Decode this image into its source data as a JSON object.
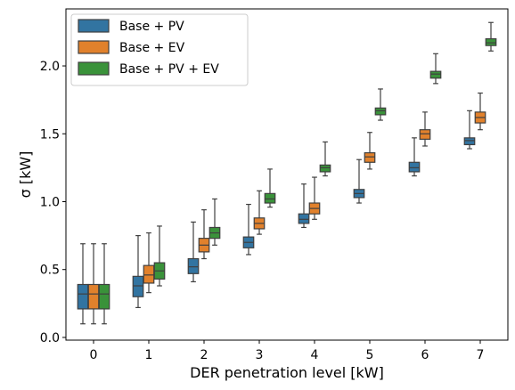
{
  "chart_data": {
    "type": "box",
    "xlabel": "DER penetration level [kW]",
    "ylabel": "σ [kW]",
    "categories": [
      "0",
      "1",
      "2",
      "3",
      "4",
      "5",
      "6",
      "7"
    ],
    "ylim": [
      -0.02,
      2.42
    ],
    "yticks": [
      0.0,
      0.5,
      1.0,
      1.5,
      2.0
    ],
    "ytick_labels": [
      "0.0",
      "0.5",
      "1.0",
      "1.5",
      "2.0"
    ],
    "grid": false,
    "legend_position": "top-left",
    "series": [
      {
        "name": "Base + PV",
        "color": "#3274a1",
        "boxes": [
          {
            "whisker_low": 0.1,
            "q1": 0.21,
            "median": 0.32,
            "q3": 0.39,
            "whisker_high": 0.69
          },
          {
            "whisker_low": 0.22,
            "q1": 0.3,
            "median": 0.38,
            "q3": 0.45,
            "whisker_high": 0.75
          },
          {
            "whisker_low": 0.41,
            "q1": 0.47,
            "median": 0.52,
            "q3": 0.58,
            "whisker_high": 0.85
          },
          {
            "whisker_low": 0.61,
            "q1": 0.66,
            "median": 0.7,
            "q3": 0.74,
            "whisker_high": 0.98
          },
          {
            "whisker_low": 0.81,
            "q1": 0.84,
            "median": 0.87,
            "q3": 0.91,
            "whisker_high": 1.13
          },
          {
            "whisker_low": 0.99,
            "q1": 1.03,
            "median": 1.06,
            "q3": 1.09,
            "whisker_high": 1.31
          },
          {
            "whisker_low": 1.19,
            "q1": 1.22,
            "median": 1.25,
            "q3": 1.29,
            "whisker_high": 1.47
          },
          {
            "whisker_low": 1.39,
            "q1": 1.42,
            "median": 1.45,
            "q3": 1.47,
            "whisker_high": 1.67
          }
        ]
      },
      {
        "name": "Base + EV",
        "color": "#e1812c",
        "boxes": [
          {
            "whisker_low": 0.1,
            "q1": 0.21,
            "median": 0.32,
            "q3": 0.39,
            "whisker_high": 0.69
          },
          {
            "whisker_low": 0.33,
            "q1": 0.4,
            "median": 0.46,
            "q3": 0.53,
            "whisker_high": 0.77
          },
          {
            "whisker_low": 0.58,
            "q1": 0.63,
            "median": 0.68,
            "q3": 0.73,
            "whisker_high": 0.94
          },
          {
            "whisker_low": 0.76,
            "q1": 0.8,
            "median": 0.84,
            "q3": 0.88,
            "whisker_high": 1.08
          },
          {
            "whisker_low": 0.87,
            "q1": 0.91,
            "median": 0.95,
            "q3": 0.99,
            "whisker_high": 1.18
          },
          {
            "whisker_low": 1.24,
            "q1": 1.29,
            "median": 1.33,
            "q3": 1.36,
            "whisker_high": 1.51
          },
          {
            "whisker_low": 1.41,
            "q1": 1.46,
            "median": 1.5,
            "q3": 1.53,
            "whisker_high": 1.66
          },
          {
            "whisker_low": 1.53,
            "q1": 1.58,
            "median": 1.62,
            "q3": 1.66,
            "whisker_high": 1.8
          }
        ]
      },
      {
        "name": "Base + PV + EV",
        "color": "#3a923a",
        "boxes": [
          {
            "whisker_low": 0.1,
            "q1": 0.21,
            "median": 0.32,
            "q3": 0.39,
            "whisker_high": 0.69
          },
          {
            "whisker_low": 0.38,
            "q1": 0.43,
            "median": 0.49,
            "q3": 0.55,
            "whisker_high": 0.82
          },
          {
            "whisker_low": 0.68,
            "q1": 0.73,
            "median": 0.77,
            "q3": 0.81,
            "whisker_high": 1.02
          },
          {
            "whisker_low": 0.96,
            "q1": 0.99,
            "median": 1.02,
            "q3": 1.06,
            "whisker_high": 1.24
          },
          {
            "whisker_low": 1.19,
            "q1": 1.22,
            "median": 1.25,
            "q3": 1.27,
            "whisker_high": 1.44
          },
          {
            "whisker_low": 1.6,
            "q1": 1.64,
            "median": 1.67,
            "q3": 1.69,
            "whisker_high": 1.83
          },
          {
            "whisker_low": 1.87,
            "q1": 1.91,
            "median": 1.94,
            "q3": 1.96,
            "whisker_high": 2.09
          },
          {
            "whisker_low": 2.11,
            "q1": 2.15,
            "median": 2.17,
            "q3": 2.2,
            "whisker_high": 2.32
          }
        ]
      }
    ]
  }
}
